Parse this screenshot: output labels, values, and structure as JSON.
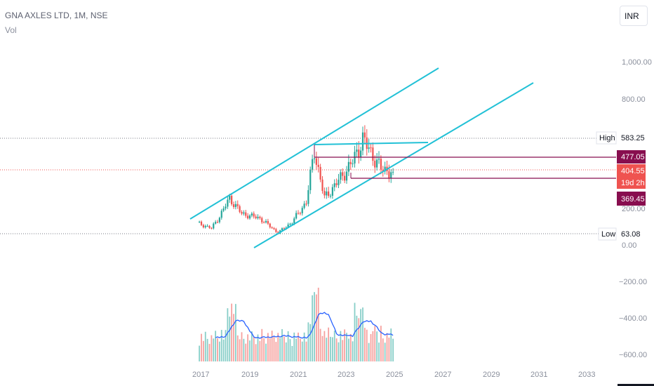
{
  "header": {
    "title": "GNA AXLES LTD, 1M, NSE",
    "volume_label": "Vol",
    "currency": "INR"
  },
  "price_axis": {
    "ticks": [
      "1,000.00",
      "800.00",
      "200.00",
      "0.00",
      "−200.00",
      "−400.00",
      "−600.00"
    ]
  },
  "time_axis": {
    "ticks": [
      "2017",
      "2019",
      "2021",
      "2023",
      "2025",
      "2027",
      "2029",
      "2031",
      "2033"
    ]
  },
  "markers": {
    "high_label": "High",
    "high_value": "583.25",
    "low_label": "Low",
    "low_value": "63.08",
    "level_upper": "477.05",
    "last_price": "404.55",
    "countdown": "19d 2h",
    "level_lower": "369.45"
  },
  "colors": {
    "up": "#26a69a",
    "down": "#ef5350",
    "channel": "#22c1d6",
    "level_line": "#880e4f",
    "volume_ma": "#2962ff"
  },
  "chart_data": {
    "type": "candlestick",
    "title": "GNA AXLES LTD, 1M, NSE",
    "interval": "1M",
    "y_range": [
      -640,
      1060
    ],
    "x_range": [
      "2016-07",
      "2034-01"
    ],
    "price_path": [
      {
        "x": "2016-12",
        "close": 120
      },
      {
        "x": "2017-06",
        "close": 95
      },
      {
        "x": "2017-10",
        "close": 160
      },
      {
        "x": "2018-03",
        "close": 260
      },
      {
        "x": "2018-09",
        "close": 175
      },
      {
        "x": "2019-06",
        "close": 150
      },
      {
        "x": "2020-03",
        "close": 70
      },
      {
        "x": "2020-10",
        "close": 130
      },
      {
        "x": "2021-05",
        "close": 240
      },
      {
        "x": "2021-09",
        "close": 520
      },
      {
        "x": "2022-02",
        "close": 260
      },
      {
        "x": "2022-10",
        "close": 370
      },
      {
        "x": "2023-04",
        "close": 460
      },
      {
        "x": "2023-09",
        "close": 583.25
      },
      {
        "x": "2024-06",
        "close": 420
      },
      {
        "x": "2024-12",
        "close": 404.55
      }
    ],
    "high": 583.25,
    "low": 63.08,
    "last_price": 404.55,
    "horizontal_levels": [
      477.05,
      369.45
    ],
    "volume_panel": true
  }
}
